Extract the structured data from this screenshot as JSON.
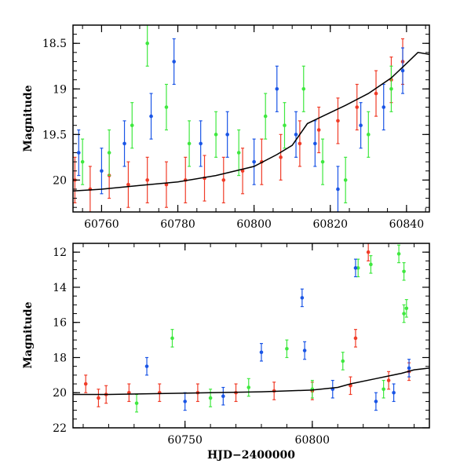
{
  "colors": {
    "red": "#f03c28",
    "green": "#3fe83f",
    "blue": "#1a55e6",
    "model": "#000000"
  },
  "chart_data": [
    {
      "type": "scatter",
      "title": "",
      "xlabel": "",
      "ylabel": "Magnitude",
      "xlim": [
        60752.5,
        60846
      ],
      "ylim": [
        20.35,
        18.3
      ],
      "y_inverted": true,
      "xticks": [
        "60760",
        "60780",
        "60800",
        "60820",
        "60840"
      ],
      "yticks": [
        "18.5",
        "19",
        "19.5",
        "20"
      ],
      "grid": false,
      "legend": "none",
      "model_curve": {
        "x": [
          60752.5,
          60760,
          60770,
          60780,
          60790,
          60800,
          60806,
          60810,
          60812,
          60814,
          60818,
          60824,
          60830,
          60836,
          60840,
          60843,
          60846
        ],
        "y": [
          20.12,
          20.1,
          20.06,
          20.02,
          19.95,
          19.85,
          19.72,
          19.62,
          19.5,
          19.38,
          19.3,
          19.18,
          19.05,
          18.88,
          18.72,
          18.6,
          18.62
        ]
      },
      "series": [
        {
          "name": "",
          "color": "red",
          "points": [
            [
              60753,
              20.0
            ],
            [
              60757,
              20.1
            ],
            [
              60762,
              19.95
            ],
            [
              60767,
              20.05
            ],
            [
              60772,
              20.0
            ],
            [
              60777,
              20.05
            ],
            [
              60782,
              20.0
            ],
            [
              60787,
              19.98
            ],
            [
              60792,
              20.0
            ],
            [
              60797,
              19.9
            ],
            [
              60802,
              19.8
            ],
            [
              60807,
              19.75
            ],
            [
              60812,
              19.6
            ],
            [
              60817,
              19.45
            ],
            [
              60822,
              19.35
            ],
            [
              60827,
              19.2
            ],
            [
              60832,
              19.05
            ],
            [
              60836,
              18.9
            ],
            [
              60839,
              18.7
            ]
          ]
        },
        {
          "name": "",
          "color": "green",
          "points": [
            [
              60755,
              19.8
            ],
            [
              60762,
              19.7
            ],
            [
              60768,
              19.4
            ],
            [
              60772,
              18.5
            ],
            [
              60777,
              19.2
            ],
            [
              60783,
              19.6
            ],
            [
              60790,
              19.5
            ],
            [
              60796,
              19.7
            ],
            [
              60803,
              19.3
            ],
            [
              60808,
              19.4
            ],
            [
              60813,
              19.0
            ],
            [
              60818,
              19.8
            ],
            [
              60824,
              20.0
            ],
            [
              60830,
              19.5
            ],
            [
              60836,
              19.0
            ]
          ]
        },
        {
          "name": "",
          "color": "blue",
          "points": [
            [
              60754,
              19.7
            ],
            [
              60760,
              19.9
            ],
            [
              60766,
              19.6
            ],
            [
              60773,
              19.3
            ],
            [
              60779,
              18.7
            ],
            [
              60786,
              19.6
            ],
            [
              60793,
              19.5
            ],
            [
              60800,
              19.8
            ],
            [
              60806,
              19.0
            ],
            [
              60811,
              19.5
            ],
            [
              60816,
              19.6
            ],
            [
              60822,
              20.1
            ],
            [
              60828,
              19.4
            ],
            [
              60834,
              19.2
            ],
            [
              60839,
              18.8
            ]
          ]
        }
      ]
    },
    {
      "type": "scatter",
      "title": "",
      "xlabel": "HJD−2400000",
      "ylabel": "Magnitude",
      "xlim": [
        60706,
        60846
      ],
      "ylim": [
        22.0,
        11.5
      ],
      "y_inverted": true,
      "xticks": [
        "60750",
        "60800"
      ],
      "yticks": [
        "12",
        "14",
        "16",
        "18",
        "20",
        "22"
      ],
      "grid": false,
      "legend": "none",
      "model_curve": {
        "x": [
          60706,
          60720,
          60740,
          60760,
          60780,
          60800,
          60810,
          60815,
          60825,
          60835,
          60840,
          60846
        ],
        "y": [
          20.1,
          20.1,
          20.05,
          20.0,
          19.95,
          19.85,
          19.7,
          19.5,
          19.2,
          18.9,
          18.7,
          18.6
        ]
      },
      "series": [
        {
          "name": "",
          "color": "red",
          "points": [
            [
              60711,
              19.5
            ],
            [
              60716,
              20.3
            ],
            [
              60719,
              20.1
            ],
            [
              60728,
              20.0
            ],
            [
              60740,
              20.0
            ],
            [
              60755,
              20.0
            ],
            [
              60770,
              20.0
            ],
            [
              60785,
              19.9
            ],
            [
              60800,
              19.9
            ],
            [
              60815,
              19.6
            ],
            [
              60817,
              16.9
            ],
            [
              60822,
              12.0
            ],
            [
              60830,
              19.3
            ],
            [
              60838,
              18.8
            ]
          ]
        },
        {
          "name": "",
          "color": "green",
          "points": [
            [
              60731,
              20.6
            ],
            [
              60745,
              16.9
            ],
            [
              60760,
              20.3
            ],
            [
              60775,
              19.7
            ],
            [
              60790,
              17.5
            ],
            [
              60800,
              19.8
            ],
            [
              60812,
              18.2
            ],
            [
              60818,
              12.9
            ],
            [
              60823,
              12.7
            ],
            [
              60828,
              19.8
            ],
            [
              60834,
              12.1
            ],
            [
              60836,
              13.1
            ],
            [
              60837,
              15.2
            ],
            [
              60836,
              15.5
            ]
          ]
        },
        {
          "name": "",
          "color": "blue",
          "points": [
            [
              60735,
              18.5
            ],
            [
              60750,
              20.5
            ],
            [
              60765,
              20.2
            ],
            [
              60780,
              17.7
            ],
            [
              60796,
              14.6
            ],
            [
              60797,
              17.6
            ],
            [
              60808,
              19.8
            ],
            [
              60817,
              12.9
            ],
            [
              60825,
              20.5
            ],
            [
              60832,
              20.0
            ],
            [
              60838,
              18.6
            ]
          ]
        }
      ]
    }
  ]
}
